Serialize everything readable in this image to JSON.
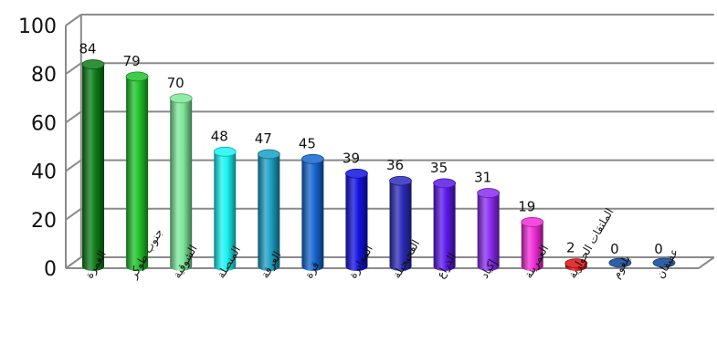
{
  "chart_data": {
    "type": "bar",
    "style": "3d-cylinder",
    "categories": [
      "الغمرة",
      "جنوب طوكر",
      "الشوقية",
      "المنصلة",
      "العرقة",
      "قرة",
      "المعابرة",
      "الفحيحيلة",
      "الذراع",
      "إكياد",
      "العمرينة",
      "الملتقات الحوارية",
      "بلغوم",
      "عفيفان"
    ],
    "values": [
      84,
      79,
      70,
      48,
      47,
      45,
      39,
      36,
      35,
      31,
      19,
      2,
      0,
      0
    ],
    "colors": [
      "#0b7d17",
      "#1fc22a",
      "#7ee89a",
      "#19f3f3",
      "#1b9fc4",
      "#1466cf",
      "#1212e0",
      "#2b2bb8",
      "#5a18e8",
      "#8a2bf0",
      "#f02bd8",
      "#e01010",
      "#2f5fa8",
      "#2f5fa8"
    ],
    "ylim": [
      0,
      100
    ],
    "yticks": [
      0,
      20,
      40,
      60,
      80,
      100
    ],
    "grid": true,
    "title": "",
    "xlabel": "",
    "ylabel": ""
  }
}
